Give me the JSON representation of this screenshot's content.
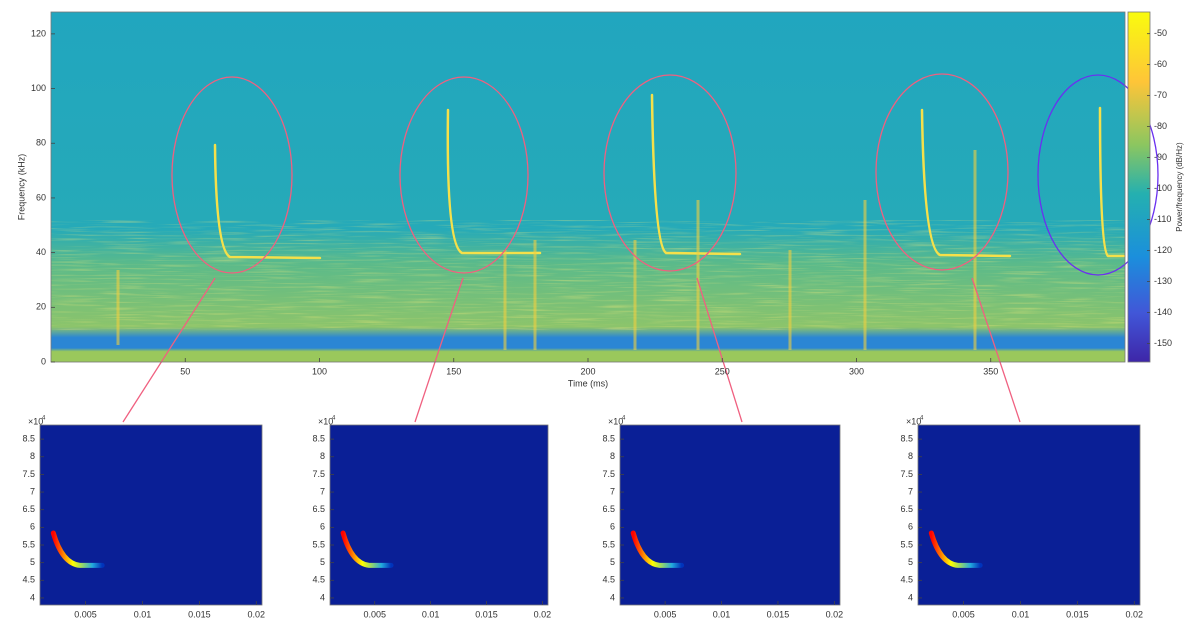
{
  "chart_data": [
    {
      "type": "spectrogram",
      "xlabel": "Time (ms)",
      "ylabel": "Frequency (kHz)",
      "xlim": [
        0,
        400
      ],
      "xticks": [
        50,
        100,
        150,
        200,
        250,
        300,
        350
      ],
      "ylim": [
        0,
        128
      ],
      "yticks": [
        0,
        20,
        40,
        60,
        80,
        100,
        120
      ],
      "colorbar": {
        "label": "Power/frequency (dB/Hz)",
        "lim": [
          -156,
          -43
        ],
        "ticks": [
          -50,
          -60,
          -70,
          -80,
          -90,
          -100,
          -110,
          -120,
          -130,
          -140,
          -150
        ]
      }
    },
    {
      "type": "spectrogram",
      "exponent": {
        "base": "×10",
        "power": "4"
      },
      "xlim": [
        0.001,
        0.0205
      ],
      "xticks": [
        0.005,
        0.01,
        0.015,
        0.02
      ],
      "ylim": [
        3.8,
        8.9
      ],
      "yticks": [
        4,
        4.5,
        5,
        5.5,
        6,
        6.5,
        7,
        7.5,
        8,
        8.5
      ]
    },
    {
      "type": "spectrogram",
      "exponent": {
        "base": "×10",
        "power": "4"
      },
      "xlim": [
        0.001,
        0.0205
      ],
      "xticks": [
        0.005,
        0.01,
        0.015,
        0.02
      ],
      "ylim": [
        3.8,
        8.9
      ],
      "yticks": [
        4,
        4.5,
        5,
        5.5,
        6,
        6.5,
        7,
        7.5,
        8,
        8.5
      ]
    },
    {
      "type": "spectrogram",
      "exponent": {
        "base": "×10",
        "power": "4"
      },
      "xlim": [
        0.001,
        0.0205
      ],
      "xticks": [
        0.005,
        0.01,
        0.015,
        0.02
      ],
      "ylim": [
        3.8,
        8.9
      ],
      "yticks": [
        4,
        4.5,
        5,
        5.5,
        6,
        6.5,
        7,
        7.5,
        8,
        8.5
      ]
    },
    {
      "type": "spectrogram",
      "exponent": {
        "base": "×10",
        "power": "4"
      },
      "xlim": [
        0.001,
        0.0205
      ],
      "xticks": [
        0.005,
        0.01,
        0.015,
        0.02
      ],
      "ylim": [
        3.8,
        8.9
      ],
      "yticks": [
        4,
        4.5,
        5,
        5.5,
        6,
        6.5,
        7,
        7.5,
        8,
        8.5
      ]
    }
  ]
}
